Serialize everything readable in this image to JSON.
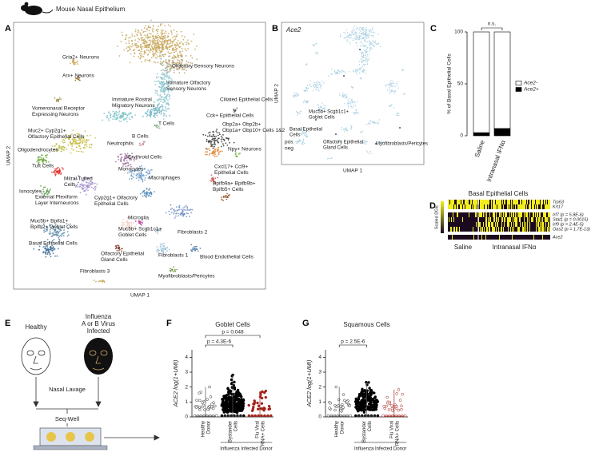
{
  "panel_a": {
    "letter": "A",
    "title": "Mouse Nasal Epithelium",
    "x_label": "UMAP 1",
    "y_label": "UMAP 2",
    "clusters": [
      [
        "Olfactory Sensory Neurons"
      ],
      [
        "Immature Olfactory",
        "Sensory Neurons"
      ],
      [
        "Gria2+ Neurons"
      ],
      [
        "Arx+ Neurons"
      ],
      [
        "Ciliated Epithelial Cells"
      ],
      [
        "Vomeronasal Receptor",
        "Expressing Neurons"
      ],
      [
        "Muc2+ Cyp2g1+",
        "Olfactory Epithelial Cells"
      ],
      [
        "Immature Rostral",
        "Migratory Neurons"
      ],
      [
        "T Cells"
      ],
      [
        "Cck+ Epithelial Cells"
      ],
      [
        "Oligodendrocytes"
      ],
      [
        "B Cells"
      ],
      [
        "Obp2a+ Obp2b+",
        "Obp1a+ Obp10+ Cells 1&2"
      ],
      [
        "Neutrophils"
      ],
      [
        "Tuft Cells"
      ],
      [
        "Erythroid Cells"
      ],
      [
        "Npy+ Neurons"
      ],
      [
        "Monocytes"
      ],
      [
        "Mitral Tufted",
        "Cells"
      ],
      [
        "Ionocytes"
      ],
      [
        "Macrophages"
      ],
      [
        "Cxcl17+ Ccl9+",
        "Epithelial Cells"
      ],
      [
        "External Plexiform",
        "Layer Interneurons"
      ],
      [
        "Cyp2g1+ Olfactory",
        "Epithelial Cells"
      ],
      [
        "Microglia"
      ],
      [
        "Bpifb9a+ Bpifb9b+",
        "Bpifb5+ Cells"
      ],
      [
        "Muc5b+ Bpifa1+",
        "Bpifb2+ Goblet Cells"
      ],
      [
        "Fibroblasts 2"
      ],
      [
        "Muc5b+ Scgb1c1+",
        "Goblet Cells"
      ],
      [
        "Basal Epithelial Cells"
      ],
      [
        "Olfactory Epithelial",
        "Gland Cells"
      ],
      [
        "Fibroblasts 1"
      ],
      [
        "Blood Endothelial Cells"
      ],
      [
        "Myofibroblasts/Pericytes"
      ],
      [
        "Fibroblasts 3"
      ]
    ]
  },
  "panel_b": {
    "letter": "B",
    "gene": "Ace2",
    "x_label": "UMAP 1",
    "y_label": "UMAP 2",
    "legend": [
      "pos",
      "neg"
    ],
    "clusters": [
      [
        "Muc5b+ Scgb1c1+",
        "Goblet Cells"
      ],
      [
        "Basal Epithelial",
        "Cells"
      ],
      [
        "Olfactory Epithelial",
        "Gland Cells"
      ],
      [
        "Myofibroblasts/Pericytes"
      ]
    ]
  },
  "panel_d": {
    "letter": "D",
    "title": "Basal Epithelial Cells",
    "colorbar_label": "Scaled DGE",
    "genes": [
      "Trp63",
      "Krt17",
      "Irf7 (p = 5.8E-6)",
      "Stat1 (p = 0.0015)",
      "Irf9 (p = 2.4E-5)",
      "Oas2 (p = 1.7E-13)",
      "Ace2"
    ],
    "groups": [
      "Saline",
      "Intranasal IFNα"
    ]
  },
  "panel_e": {
    "letter": "E",
    "groups": [
      "Healthy",
      [
        "Influenza",
        "A or B Virus",
        "Infected"
      ]
    ],
    "steps": [
      "Nasal Lavage",
      "Seq-Well"
    ]
  },
  "chart_data": [
    {
      "type": "bar",
      "letter": "C",
      "y_label": "% of Basal Epithelial Cells",
      "categories": [
        "Saline",
        "Intranasal IFNα"
      ],
      "category_colors": [
        "#000000",
        "#d0281f"
      ],
      "series": [
        {
          "name": "Ace2+",
          "color": "#000000",
          "values": [
            3,
            7
          ],
          "errors": [
            1,
            3
          ]
        },
        {
          "name": "Ace2-",
          "color": "#ffffff",
          "values": [
            97,
            93
          ]
        }
      ],
      "ylim": [
        0,
        100
      ],
      "yticks": [
        0,
        50,
        100
      ],
      "annotation": "n.s."
    },
    {
      "type": "strip",
      "letter": "F",
      "title": "Goblet Cells",
      "y_label": "ACE2 log(1+UMI)",
      "categories": [
        [
          "Healthy",
          "Donor"
        ],
        [
          "Bystander",
          "Cells"
        ],
        [
          "Flu Viral",
          "RNA+ Cells"
        ]
      ],
      "group_label": "Influenza Infected Donor",
      "ylim": [
        0,
        4.5
      ],
      "yticks": [
        0,
        1,
        2,
        3,
        4
      ],
      "annotations": [
        "p = 4.3E-6",
        "p = 0.048"
      ]
    },
    {
      "type": "strip",
      "letter": "G",
      "title": "Squamous Cells",
      "y_label": "ACE2 log(1+UMI)",
      "categories": [
        [
          "Healthy",
          "Donor"
        ],
        [
          "Bystander",
          "Cells"
        ],
        [
          "Flu Viral",
          "RNA+ Cells"
        ]
      ],
      "group_label": "Influenza Infected Donor",
      "ylim": [
        0,
        4.5
      ],
      "yticks": [
        0,
        1,
        2,
        3,
        4
      ],
      "annotations": [
        "p = 2.5E-6"
      ]
    }
  ]
}
